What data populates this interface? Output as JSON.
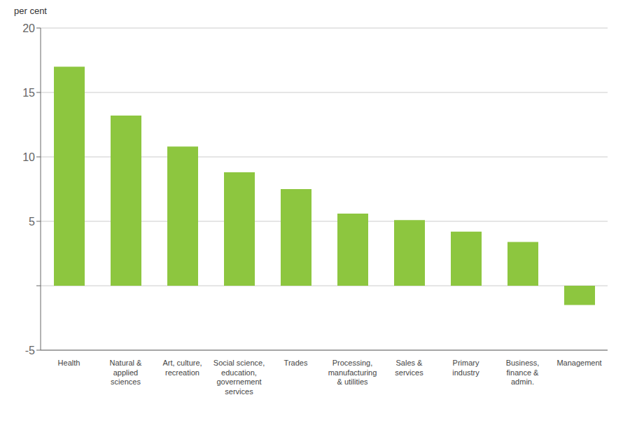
{
  "chart_data": {
    "type": "bar",
    "y_label": "per cent",
    "categories": [
      "Health",
      "Natural &\napplied\nsciences",
      "Art, culture,\nrecreation",
      "Social science,\neducation,\ngovernement\nservices",
      "Trades",
      "Processing,\nmanufacturing\n& utilities",
      "Sales &\nservices",
      "Primary\nindustry",
      "Business,\nfinance &\nadmin.",
      "Management"
    ],
    "values": [
      17.0,
      13.2,
      10.8,
      8.8,
      7.5,
      5.6,
      5.1,
      4.2,
      3.4,
      -1.5
    ],
    "color": "#8dc63f",
    "ylim": [
      -5,
      20
    ],
    "yticks": [
      -5,
      {
        "value": 0,
        "label": ""
      },
      5,
      10,
      15,
      20
    ],
    "grid": true
  }
}
